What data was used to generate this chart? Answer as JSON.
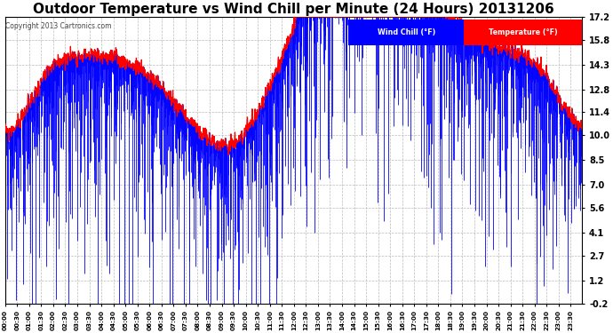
{
  "title": "Outdoor Temperature vs Wind Chill per Minute (24 Hours) 20131206",
  "copyright_text": "Copyright 2013 Cartronics.com",
  "legend_wind_chill": "Wind Chill (°F)",
  "legend_temperature": "Temperature (°F)",
  "ytick_values": [
    17.2,
    15.8,
    14.3,
    12.8,
    11.4,
    10.0,
    8.5,
    7.0,
    5.6,
    4.1,
    2.7,
    1.2,
    -0.2
  ],
  "ymin": -0.2,
  "ymax": 17.2,
  "background_color": "#ffffff",
  "plot_bg_color": "#ffffff",
  "title_fontsize": 11,
  "wind_chill_color": "#ff0000",
  "temp_color": "#0000ff",
  "legend_wind_bg": "#0000ff",
  "legend_temp_bg": "#ff0000",
  "grid_color": "#bbbbbb",
  "n_minutes": 1440,
  "xtick_step_minutes": 30
}
